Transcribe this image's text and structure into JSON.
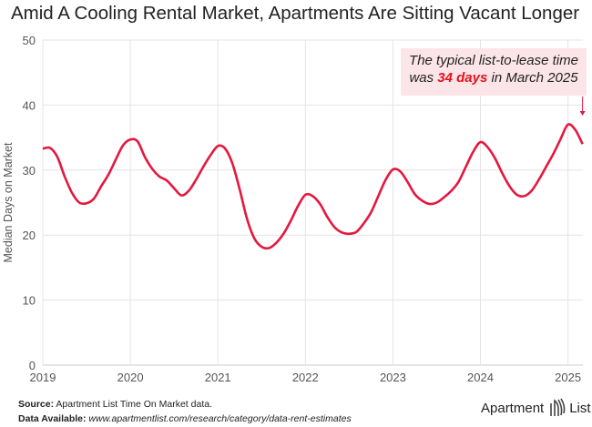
{
  "chart_data": {
    "type": "line",
    "title": "Amid A Cooling Rental Market, Apartments Are Sitting Vacant Longer",
    "xlabel": "",
    "ylabel": "Median Days on Market",
    "ylim": [
      0,
      50
    ],
    "yticks": [
      "0",
      "10",
      "20",
      "30",
      "40",
      "50"
    ],
    "xticks": [
      "2019",
      "2020",
      "2021",
      "2022",
      "2023",
      "2024",
      "2025"
    ],
    "xlim": [
      "2019-01",
      "2025-03"
    ],
    "grid": true,
    "color": "#e3183f",
    "x_start": "2019-01",
    "frequency": "monthly",
    "values": [
      33.3,
      33.4,
      32.0,
      29.0,
      26.5,
      25.0,
      24.9,
      25.6,
      27.5,
      29.3,
      31.6,
      33.8,
      34.7,
      34.4,
      32.0,
      30.2,
      29.0,
      28.4,
      27.2,
      26.1,
      26.8,
      28.5,
      30.5,
      32.3,
      33.7,
      33.3,
      31.0,
      27.0,
      22.5,
      19.5,
      18.2,
      18.0,
      18.8,
      20.2,
      22.2,
      24.5,
      26.2,
      26.0,
      24.8,
      22.8,
      21.2,
      20.4,
      20.2,
      20.5,
      21.8,
      23.5,
      26.0,
      28.5,
      30.1,
      29.8,
      28.2,
      26.3,
      25.3,
      24.8,
      25.0,
      25.8,
      26.8,
      28.2,
      30.5,
      32.8,
      34.3,
      33.5,
      31.8,
      29.5,
      27.5,
      26.2,
      26.0,
      26.8,
      28.5,
      30.5,
      32.5,
      34.8,
      37.0,
      36.2,
      34.0
    ],
    "annotation": {
      "line1": "The typical list-to-lease time",
      "pre": "was ",
      "highlight": "34 days",
      "post": " in March 2025",
      "highlight_color": "#e8101e",
      "background": "#fce5e8"
    }
  },
  "footer": {
    "source_label": "Source:",
    "source_text": " Apartment List Time On Market data.",
    "data_label": "Data Available:",
    "data_url": " www.apartmentlist.com/research/category/data-rent-estimates"
  },
  "logo": {
    "text1": "Apartment",
    "text2": "List"
  }
}
